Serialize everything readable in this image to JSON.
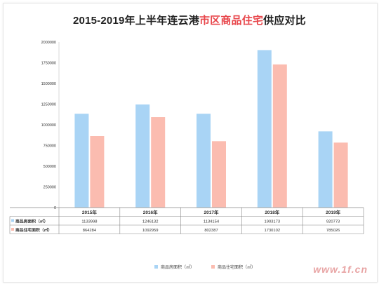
{
  "title": {
    "prefix": "2015-2019年上半年连云港",
    "highlight": "市区商品住宅",
    "suffix": "供应对比"
  },
  "chart_data": {
    "type": "bar",
    "categories": [
      "2015年",
      "2016年",
      "2017年",
      "2018年",
      "2019年"
    ],
    "series": [
      {
        "name": "商品房面积（㎡）",
        "table_label": "商品房面积（㎡）",
        "color": "#a9d4f5",
        "values": [
          1133998,
          1246132,
          1134154,
          1903173,
          920773
        ]
      },
      {
        "name": "商品住宅面积（㎡）",
        "table_label": "商品住宅面积（㎡）",
        "color": "#fbbcb0",
        "values": [
          864284,
          1092959,
          802387,
          1730102,
          785026
        ]
      }
    ],
    "ylim": [
      0,
      2000000
    ],
    "yticks": [
      0,
      250000,
      500000,
      750000,
      1000000,
      1250000,
      1500000,
      1750000,
      2000000
    ],
    "grid": false,
    "legend": "bottom"
  },
  "watermark": "www.1f.cn"
}
